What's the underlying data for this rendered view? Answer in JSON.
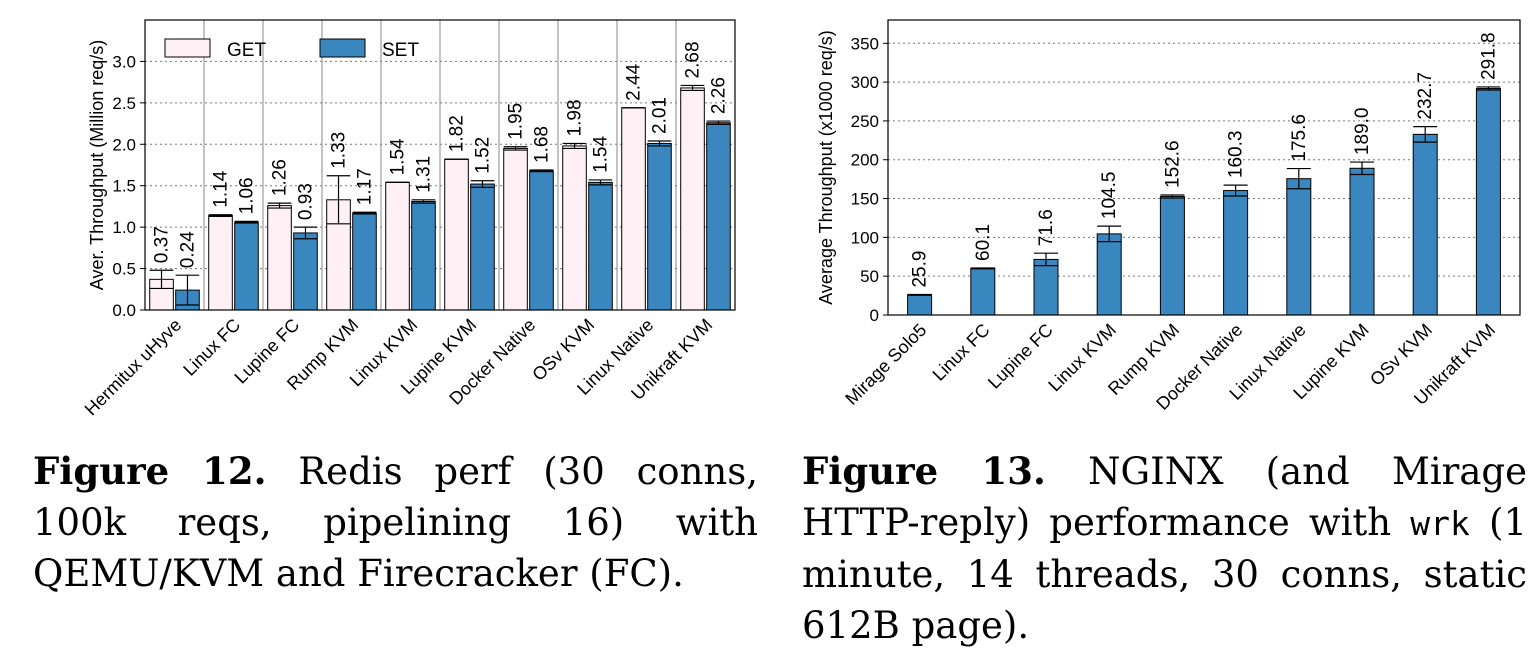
{
  "chart_data": [
    {
      "type": "bar",
      "ylabel": "Aver. Throughput (Million req/s)",
      "ylim": [
        0,
        3.5
      ],
      "yticks": [
        "0.0",
        "0.5",
        "1.0",
        "1.5",
        "2.0",
        "2.5",
        "3.0"
      ],
      "categories": [
        "Hermitux uHyve",
        "Linux FC",
        "Lupine FC",
        "Rump KVM",
        "Linux KVM",
        "Lupine KVM",
        "Docker Native",
        "OSv KVM",
        "Linux Native",
        "Unikraft KVM"
      ],
      "series": [
        {
          "name": "GET",
          "color": "#fff0f5",
          "values": [
            0.37,
            1.14,
            1.26,
            1.33,
            1.54,
            1.82,
            1.95,
            1.98,
            2.44,
            2.68
          ],
          "errors": [
            0.11,
            0.01,
            0.03,
            0.29,
            0.0,
            0.0,
            0.02,
            0.03,
            0.0,
            0.03
          ],
          "labels": [
            "0.37",
            "1.14",
            "1.26",
            "1.33",
            "1.54",
            "1.82",
            "1.95",
            "1.98",
            "2.44",
            "2.68"
          ]
        },
        {
          "name": "SET",
          "color": "#3a87bf",
          "values": [
            0.24,
            1.06,
            0.93,
            1.17,
            1.31,
            1.52,
            1.68,
            1.54,
            2.01,
            2.26
          ],
          "errors": [
            0.18,
            0.01,
            0.07,
            0.01,
            0.02,
            0.04,
            0.01,
            0.03,
            0.03,
            0.02
          ],
          "labels": [
            "0.24",
            "1.06",
            "0.93",
            "1.17",
            "1.31",
            "1.52",
            "1.68",
            "1.54",
            "2.01",
            "2.26"
          ]
        }
      ],
      "grid": true,
      "legend": "top-left"
    },
    {
      "type": "bar",
      "ylabel": "Average Throughput (x1000 req/s)",
      "ylim": [
        0,
        380
      ],
      "yticks": [
        "0",
        "50",
        "100",
        "150",
        "200",
        "250",
        "300",
        "350"
      ],
      "categories": [
        "Mirage Solo5",
        "Linux FC",
        "Lupine FC",
        "Linux KVM",
        "Rump KVM",
        "Docker Native",
        "Linux Native",
        "Lupine KVM",
        "OSv KVM",
        "Unikraft KVM"
      ],
      "series": [
        {
          "color": "#3a87bf",
          "values": [
            25.9,
            60.1,
            71.6,
            104.5,
            152.6,
            160.3,
            175.6,
            189.0,
            232.7,
            291.8
          ],
          "errors": [
            0.5,
            0.5,
            8,
            10,
            2,
            7,
            13,
            8,
            10,
            2
          ],
          "labels": [
            "25.9",
            "60.1",
            "71.6",
            "104.5",
            "152.6",
            "160.3",
            "175.6",
            "189.0",
            "232.7",
            "291.8"
          ]
        }
      ],
      "grid": true
    }
  ],
  "captions": {
    "fig12": {
      "label": "Figure 12.",
      "text": "Redis perf (30 conns, 100k reqs, pipelining 16) with QEMU/KVM and Firecracker (FC)."
    },
    "fig13": {
      "label": "Figure 13.",
      "text_before": "NGINX (and Mirage HTTP-reply) performance with",
      "code": "wrk",
      "text_after": "(1 minute, 14 threads, 30 conns, static 612B page)."
    }
  }
}
